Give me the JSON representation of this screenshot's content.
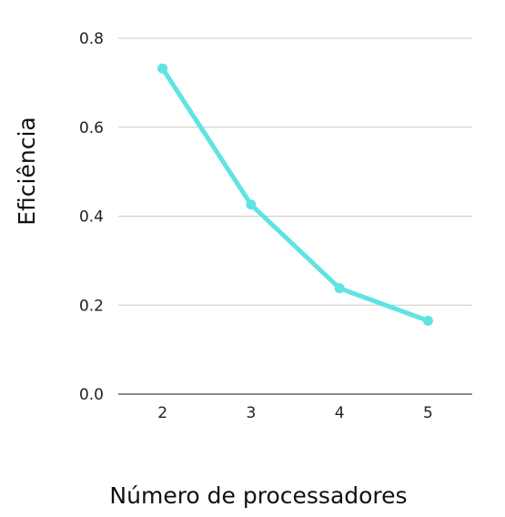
{
  "chart_data": {
    "type": "line",
    "x": [
      2,
      3,
      4,
      5
    ],
    "y_ticks": [
      "0.0",
      "0.2",
      "0.4",
      "0.6",
      "0.8"
    ],
    "x_ticks": [
      "2",
      "3",
      "4",
      "5"
    ],
    "series": [
      {
        "values": [
          0.732,
          0.426,
          0.238,
          0.165
        ],
        "color": "#5fe3e3"
      }
    ],
    "xlabel": "Número de processadores",
    "ylabel": "Eficiência",
    "ylim": [
      0,
      0.8
    ],
    "xlim": [
      1.5,
      5.5
    ],
    "grid": "horizontal",
    "legend": "none"
  }
}
